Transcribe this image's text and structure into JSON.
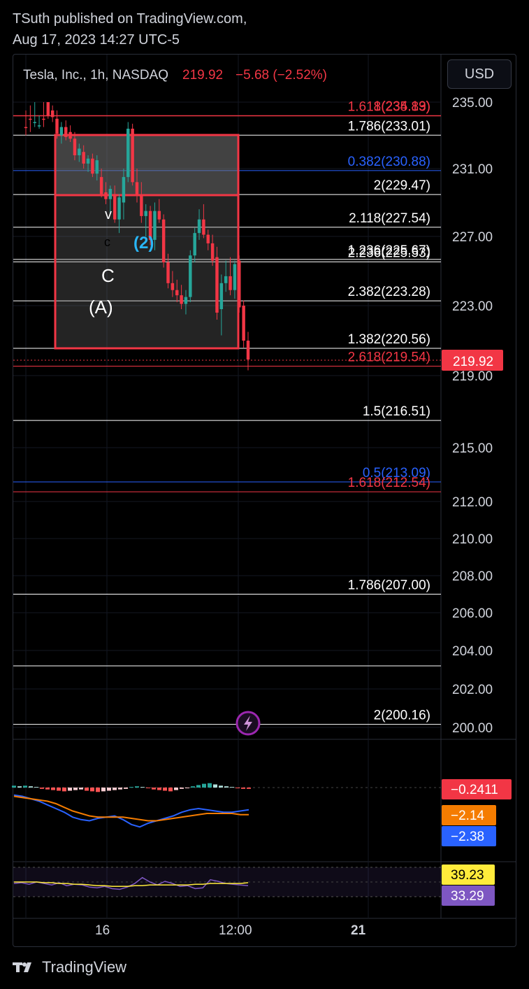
{
  "header": {
    "line1": "TSuth published on TradingView.com,",
    "line2": "Aug 17, 2023 14:27 UTC-5"
  },
  "legend": {
    "symbol": "Tesla, Inc., 1h, NASDAQ",
    "price": "219.92",
    "change": "−5.68 (−2.52%)"
  },
  "currency_button": "USD",
  "footer": {
    "brand": "TradingView",
    "logo_icon": "tradingview-logo-icon"
  },
  "colors": {
    "up": "#26a69a",
    "down": "#f23645",
    "fib_white": "#ffffff",
    "fib_red": "#f23645",
    "fib_blue": "#2962ff",
    "wave_blue": "#29b6f6"
  },
  "chart_data": [
    {
      "type": "candlestick",
      "symbol": "TSLA",
      "interval": "1h",
      "price_axis": [
        "235.00",
        "231.00",
        "227.00",
        "223.00",
        "219.00",
        "215.00",
        "212.00",
        "210.00",
        "208.00",
        "206.00",
        "204.00",
        "202.00",
        "200.00"
      ],
      "time_axis": [
        "16",
        "12:00",
        "21"
      ],
      "last_price_label": "219.92",
      "candles_approx": [
        {
          "o": 236.5,
          "h": 237.0,
          "l": 235.5,
          "c": 236.0
        },
        {
          "o": 236.0,
          "h": 236.8,
          "l": 234.8,
          "c": 235.3
        },
        {
          "o": 235.5,
          "h": 236.5,
          "l": 235.0,
          "c": 236.2
        },
        {
          "o": 236.2,
          "h": 236.6,
          "l": 235.8,
          "c": 236.4
        },
        {
          "o": 236.0,
          "h": 236.5,
          "l": 235.0,
          "c": 235.2
        },
        {
          "o": 235.0,
          "h": 235.3,
          "l": 234.0,
          "c": 234.2
        },
        {
          "o": 234.5,
          "h": 235.2,
          "l": 233.8,
          "c": 234.1
        },
        {
          "o": 234.0,
          "h": 234.5,
          "l": 232.8,
          "c": 233.1
        },
        {
          "o": 233.0,
          "h": 233.8,
          "l": 232.5,
          "c": 233.5
        },
        {
          "o": 233.5,
          "h": 233.9,
          "l": 232.7,
          "c": 232.9
        },
        {
          "o": 233.2,
          "h": 233.6,
          "l": 232.6,
          "c": 232.8
        },
        {
          "o": 232.8,
          "h": 233.2,
          "l": 231.5,
          "c": 231.8
        },
        {
          "o": 231.8,
          "h": 232.5,
          "l": 231.4,
          "c": 232.2
        },
        {
          "o": 232.0,
          "h": 232.4,
          "l": 231.0,
          "c": 231.3
        },
        {
          "o": 231.3,
          "h": 231.8,
          "l": 230.8,
          "c": 231.6
        },
        {
          "o": 231.6,
          "h": 231.9,
          "l": 230.5,
          "c": 230.7
        },
        {
          "o": 230.7,
          "h": 231.8,
          "l": 230.3,
          "c": 231.5
        },
        {
          "o": 230.5,
          "h": 231.0,
          "l": 229.3,
          "c": 229.5
        },
        {
          "o": 229.6,
          "h": 230.2,
          "l": 228.9,
          "c": 229.2
        },
        {
          "o": 229.2,
          "h": 230.0,
          "l": 228.3,
          "c": 229.8
        },
        {
          "o": 229.5,
          "h": 230.0,
          "l": 227.8,
          "c": 228.0
        },
        {
          "o": 228.0,
          "h": 229.5,
          "l": 227.2,
          "c": 229.3
        },
        {
          "o": 229.0,
          "h": 231.0,
          "l": 228.0,
          "c": 230.5
        },
        {
          "o": 230.5,
          "h": 233.8,
          "l": 230.2,
          "c": 233.4
        },
        {
          "o": 233.4,
          "h": 233.7,
          "l": 230.0,
          "c": 230.2
        },
        {
          "o": 230.2,
          "h": 231.0,
          "l": 229.0,
          "c": 229.4
        },
        {
          "o": 229.4,
          "h": 230.2,
          "l": 227.8,
          "c": 228.2
        },
        {
          "o": 228.2,
          "h": 228.9,
          "l": 227.0,
          "c": 228.5
        },
        {
          "o": 228.5,
          "h": 228.8,
          "l": 226.5,
          "c": 226.8
        },
        {
          "o": 226.8,
          "h": 229.0,
          "l": 226.2,
          "c": 228.5
        },
        {
          "o": 228.5,
          "h": 229.2,
          "l": 227.8,
          "c": 228.0
        },
        {
          "o": 228.0,
          "h": 228.3,
          "l": 225.2,
          "c": 225.5
        },
        {
          "o": 225.5,
          "h": 226.0,
          "l": 224.0,
          "c": 224.3
        },
        {
          "o": 224.3,
          "h": 225.0,
          "l": 223.5,
          "c": 223.9
        },
        {
          "o": 223.9,
          "h": 224.5,
          "l": 223.2,
          "c": 223.6
        },
        {
          "o": 223.6,
          "h": 224.2,
          "l": 222.8,
          "c": 223.1
        },
        {
          "o": 223.1,
          "h": 223.9,
          "l": 222.5,
          "c": 223.5
        },
        {
          "o": 223.5,
          "h": 226.2,
          "l": 223.2,
          "c": 225.9
        },
        {
          "o": 225.9,
          "h": 227.5,
          "l": 225.5,
          "c": 227.2
        },
        {
          "o": 227.2,
          "h": 228.6,
          "l": 226.8,
          "c": 228.0
        },
        {
          "o": 228.0,
          "h": 228.9,
          "l": 226.9,
          "c": 227.1
        },
        {
          "o": 227.1,
          "h": 227.4,
          "l": 226.2,
          "c": 226.6
        },
        {
          "o": 226.6,
          "h": 227.1,
          "l": 225.3,
          "c": 225.6
        },
        {
          "o": 225.8,
          "h": 226.4,
          "l": 222.2,
          "c": 222.6
        },
        {
          "o": 222.8,
          "h": 224.8,
          "l": 221.3,
          "c": 224.3
        },
        {
          "o": 224.3,
          "h": 225.6,
          "l": 223.8,
          "c": 224.7
        },
        {
          "o": 224.7,
          "h": 225.8,
          "l": 223.6,
          "c": 223.9
        },
        {
          "o": 223.9,
          "h": 225.6,
          "l": 223.4,
          "c": 225.4
        },
        {
          "o": 225.6,
          "h": 225.9,
          "l": 222.6,
          "c": 222.9
        },
        {
          "o": 223.0,
          "h": 223.3,
          "l": 220.6,
          "c": 221.0
        },
        {
          "o": 221.0,
          "h": 221.5,
          "l": 219.3,
          "c": 219.92
        }
      ],
      "fib_levels": [
        {
          "label": "1.618(235.83)",
          "price": 235.83,
          "color": "red"
        },
        {
          "label": "1(234.19)",
          "price": 234.19,
          "color": "red"
        },
        {
          "label": "1.786(233.01)",
          "price": 233.01,
          "color": "white"
        },
        {
          "label": "0.382(230.88)",
          "price": 230.88,
          "color": "blue"
        },
        {
          "label": "2(229.47)",
          "price": 229.47,
          "color": "white"
        },
        {
          "label": "2.118(227.54)",
          "price": 227.54,
          "color": "white"
        },
        {
          "label": "1.236(225.67)",
          "price": 225.67,
          "color": "white"
        },
        {
          "label": "2.236(225.53)",
          "price": 225.53,
          "color": "white"
        },
        {
          "label": "2.382(223.28)",
          "price": 223.28,
          "color": "white"
        },
        {
          "label": "1.382(220.56)",
          "price": 220.56,
          "color": "white"
        },
        {
          "label": "2.618(219.54)",
          "price": 219.54,
          "color": "red"
        },
        {
          "label": "1.5(216.51)",
          "price": 216.51,
          "color": "white"
        },
        {
          "label": "0.5(213.09)",
          "price": 213.09,
          "color": "blue"
        },
        {
          "label": "1.618(212.54)",
          "price": 212.54,
          "color": "red"
        },
        {
          "label": "1.786(207.00)",
          "price": 207.0,
          "color": "white"
        },
        {
          "label": "",
          "price": 203.2,
          "color": "white"
        },
        {
          "label": "2(200.16)",
          "price": 200.16,
          "color": "white"
        }
      ],
      "wave_labels": [
        "v",
        "c",
        "(2)",
        "C",
        "(A)"
      ]
    },
    {
      "type": "macd",
      "labels": [
        "−0.2411",
        "−2.14",
        "−2.38"
      ],
      "label_colors": [
        "#f23645",
        "#f57c00",
        "#2962ff"
      ],
      "histogram_approx": [
        0.3,
        0.2,
        0.3,
        0.2,
        0.1,
        -0.2,
        -0.3,
        -0.4,
        -0.5,
        -0.6,
        -0.5,
        -0.4,
        -0.3,
        -0.5,
        -0.6,
        -0.7,
        -0.6,
        -0.5,
        -0.4,
        -0.3,
        -0.2,
        0.1,
        0.2,
        0.1,
        -0.1,
        -0.3,
        -0.4,
        -0.5,
        -0.6,
        -0.4,
        -0.2,
        -0.1,
        0.2,
        0.4,
        0.6,
        0.7,
        0.5,
        0.3,
        0.2,
        0.1,
        -0.1,
        -0.2,
        -0.2
      ],
      "macd_approx": [
        -0.5,
        -0.6,
        -0.8,
        -1.0,
        -1.3,
        -1.6,
        -1.9,
        -2.3,
        -2.5,
        -2.6,
        -2.4,
        -2.3,
        -2.2,
        -2.5,
        -2.9,
        -3.1,
        -2.8,
        -2.6,
        -2.4,
        -2.2,
        -1.9,
        -1.7,
        -1.6,
        -1.7,
        -1.8,
        -1.9,
        -1.9,
        -1.8,
        -1.7
      ],
      "signal_approx": [
        -0.6,
        -0.7,
        -0.8,
        -0.9,
        -1.0,
        -1.2,
        -1.5,
        -1.8,
        -2.0,
        -2.2,
        -2.3,
        -2.3,
        -2.3,
        -2.3,
        -2.4,
        -2.5,
        -2.6,
        -2.6,
        -2.5,
        -2.4,
        -2.3,
        -2.2,
        -2.1,
        -2.0,
        -2.0,
        -2.0,
        -2.0,
        -2.1,
        -2.1
      ]
    },
    {
      "type": "line",
      "name": "rsi",
      "labels": [
        "39.23",
        "33.29"
      ],
      "label_colors": [
        "#ffeb3b",
        "#7e57c2"
      ],
      "rsi_approx": [
        38,
        39,
        37,
        40,
        38,
        36,
        39,
        35,
        37,
        36,
        33,
        32,
        34,
        31,
        30,
        33,
        38,
        46,
        40,
        36,
        41,
        38,
        34,
        35,
        31,
        32,
        43,
        41,
        38,
        37,
        36,
        35
      ],
      "ma_approx": [
        40,
        40,
        40,
        40,
        39,
        39,
        38,
        38,
        37,
        37,
        36,
        35,
        35,
        34,
        34,
        34,
        35,
        35,
        36,
        36,
        36,
        36,
        36,
        36,
        37,
        37,
        38,
        38,
        38,
        38,
        38,
        39
      ]
    }
  ]
}
